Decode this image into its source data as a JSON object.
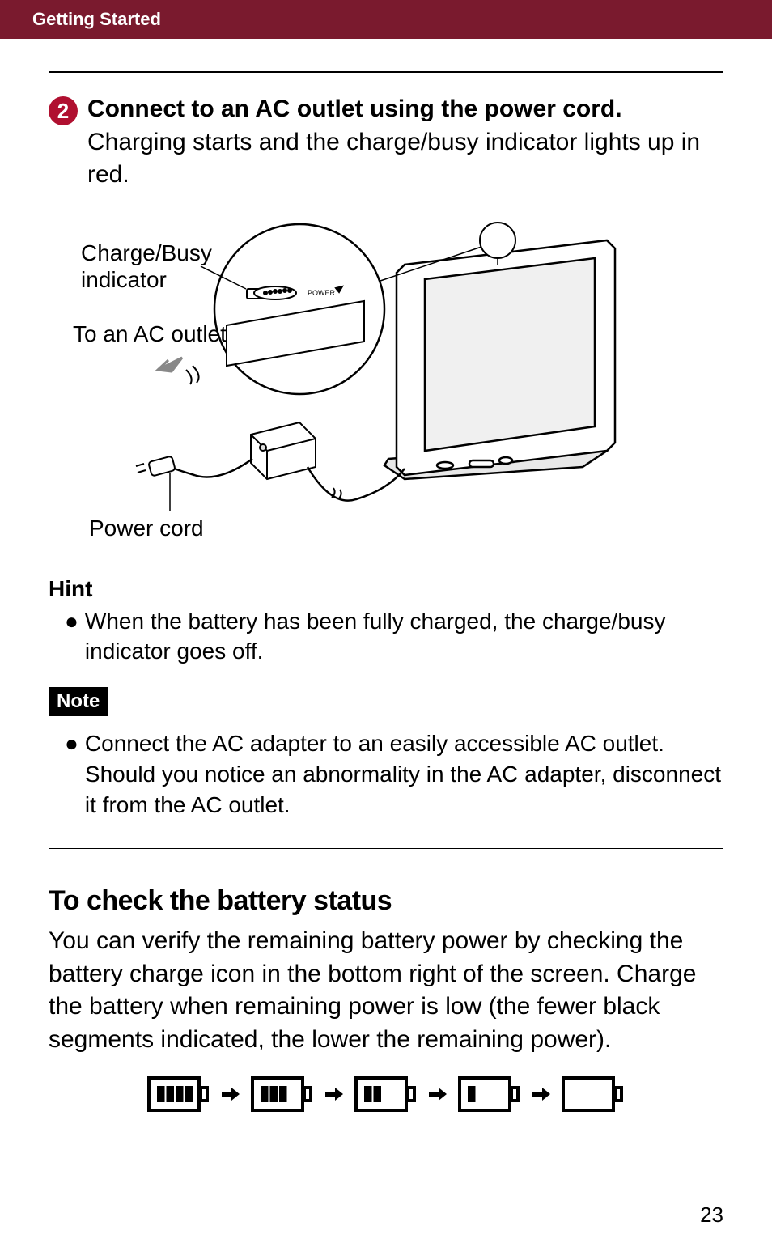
{
  "header": {
    "section": "Getting Started"
  },
  "step": {
    "number": "2",
    "title": "Connect to an AC outlet using the power cord.",
    "desc": "Charging starts and the charge/busy indicator lights up in red."
  },
  "diagram": {
    "labels": {
      "charge_busy_1": "Charge/Busy",
      "charge_busy_2": "indicator",
      "ac_outlet": "To an AC outlet",
      "power_cord": "Power cord",
      "power_badge": "POWER"
    },
    "colors": {
      "line": "#000000",
      "fill_light": "#ffffff",
      "fill_gray": "#e8e8e8",
      "arrow_gray": "#888888"
    }
  },
  "hint": {
    "label": "Hint",
    "bullet": "When the battery has been fully charged, the charge/busy indicator goes off."
  },
  "note": {
    "label": "Note",
    "bullet": "Connect the AC adapter to an easily accessible AC outlet. Should you notice an abnormality in the AC adapter, disconnect it from the AC outlet."
  },
  "battery_section": {
    "heading": "To check the battery status",
    "body": "You can verify the remaining battery power by checking the battery charge icon in the bottom right of the screen. Charge the battery when remaining power is low (the fewer black segments indicated, the lower the remaining power).",
    "levels": [
      4,
      3,
      2,
      1,
      0
    ],
    "icon": {
      "outer_stroke": "#000000",
      "outer_stroke_width": 4,
      "segment_fill": "#000000",
      "background": "#ffffff",
      "width": 78,
      "height": 44
    },
    "arrow_color": "#000000"
  },
  "page_number": "23"
}
